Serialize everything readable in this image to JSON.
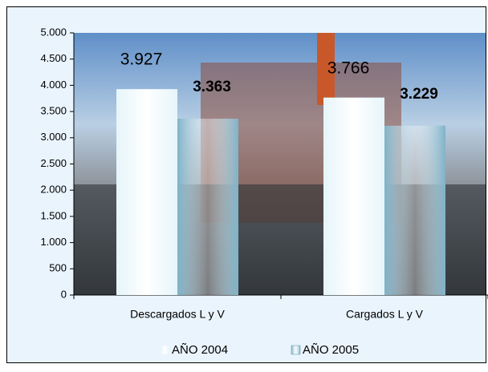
{
  "chart_data": {
    "type": "bar",
    "categories": [
      "Descargados L y V",
      "Cargados L y V"
    ],
    "series": [
      {
        "name": "AÑO 2004",
        "color": "#e6f5fa",
        "values": [
          3927,
          3766
        ],
        "value_labels": [
          "3.927",
          "3.766"
        ]
      },
      {
        "name": "AÑO 2005",
        "color": "#7fb3c9",
        "values": [
          3363,
          3229
        ],
        "value_labels": [
          "3.363",
          "3.229"
        ]
      }
    ],
    "ylim": [
      0,
      5000
    ],
    "yticks": [
      0,
      500,
      {
        "value": 1000,
        "label": "1.000"
      },
      {
        "value": 1500,
        "label": "1.500"
      },
      {
        "value": 2000,
        "label": "2.000"
      },
      {
        "value": 2500,
        "label": "2.500"
      },
      {
        "value": 3000,
        "label": "3.000"
      },
      {
        "value": 3500,
        "label": "3.500"
      },
      {
        "value": 4000,
        "label": "4.000"
      },
      {
        "value": 4500,
        "label": "4.500"
      },
      {
        "value": 5000,
        "label": "5.000"
      }
    ],
    "legend": "bottom"
  }
}
